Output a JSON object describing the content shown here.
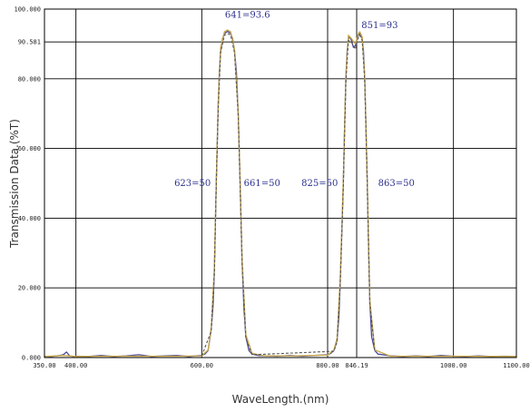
{
  "chart_data": {
    "type": "line",
    "xlabel": "WaveLength.(nm)",
    "ylabel": "Transmission Data.(%T)",
    "xlim": [
      350,
      1100
    ],
    "ylim": [
      0,
      100
    ],
    "x_ticks": [
      "350.00",
      "400.00",
      "600.00",
      "800.00",
      "846.19",
      "1000.00",
      "1100.00"
    ],
    "x_tick_values": [
      350,
      400,
      600,
      800,
      846.19,
      1000,
      1100
    ],
    "y_ticks": [
      "0.000",
      "20.000",
      "40.000",
      "60.000",
      "80.000",
      "90.581",
      "100.000"
    ],
    "y_tick_values": [
      0,
      20,
      40,
      60,
      80,
      90.581,
      100
    ],
    "x_grid": [
      400,
      600,
      800,
      846.19,
      1000
    ],
    "y_grid": [
      20,
      40,
      60,
      80,
      90.581
    ],
    "grid": true,
    "annotations": [
      {
        "text": "641=93.6",
        "x": 641,
        "y": 93.6
      },
      {
        "text": "851=93",
        "x": 851,
        "y": 93
      },
      {
        "text": "623=50",
        "x": 623,
        "y": 50
      },
      {
        "text": "661=50",
        "x": 661,
        "y": 50
      },
      {
        "text": "825=50",
        "x": 825,
        "y": 50
      },
      {
        "text": "863=50",
        "x": 863,
        "y": 50
      }
    ],
    "series": [
      {
        "color": "#4a4a9a",
        "x": [
          350,
          360,
          370,
          380,
          385,
          390,
          395,
          400,
          420,
          440,
          460,
          480,
          500,
          520,
          540,
          560,
          580,
          590,
          600,
          605,
          610,
          615,
          618,
          620,
          623,
          626,
          628,
          630,
          633,
          636,
          641,
          646,
          649,
          652,
          655,
          658,
          661,
          664,
          667,
          670,
          675,
          680,
          690,
          700,
          720,
          740,
          760,
          780,
          800,
          805,
          810,
          815,
          818,
          820,
          823,
          825,
          827,
          829,
          831,
          833,
          835,
          838,
          841,
          844,
          847,
          849,
          851,
          853,
          855,
          857,
          859,
          861,
          863,
          865,
          867,
          870,
          875,
          880,
          900,
          920,
          940,
          960,
          980,
          1000,
          1020,
          1040,
          1060,
          1080,
          1100
        ],
        "y": [
          0.4,
          0.3,
          0.5,
          0.8,
          1.6,
          0.5,
          0.3,
          0.4,
          0.3,
          0.6,
          0.3,
          0.5,
          0.8,
          0.3,
          0.5,
          0.6,
          0.3,
          0.5,
          0.6,
          1.0,
          2.0,
          8.0,
          15.0,
          25.0,
          50.0,
          72.0,
          82.0,
          88.0,
          91.5,
          93.0,
          93.6,
          93.0,
          91.5,
          88.0,
          82.0,
          70.0,
          50.0,
          28.0,
          14.0,
          6.0,
          2.0,
          1.0,
          0.6,
          0.5,
          0.4,
          0.6,
          0.4,
          0.6,
          0.8,
          1.2,
          2.0,
          5.0,
          12.0,
          22.0,
          38.0,
          50.0,
          66.0,
          80.0,
          88.0,
          91.5,
          92.0,
          91.0,
          89.0,
          89.5,
          91.5,
          92.5,
          93.0,
          92.5,
          91.5,
          88.0,
          80.0,
          66.0,
          50.0,
          32.0,
          16.0,
          6.0,
          2.0,
          1.0,
          0.5,
          0.3,
          0.5,
          0.3,
          0.6,
          0.4,
          0.3,
          0.5,
          0.3,
          0.4,
          0.3
        ]
      },
      {
        "color": "#c9a84a",
        "x": [
          350,
          380,
          400,
          440,
          480,
          520,
          560,
          600,
          610,
          615,
          620,
          623,
          626,
          630,
          636,
          641,
          646,
          652,
          658,
          661,
          664,
          670,
          680,
          700,
          750,
          800,
          810,
          815,
          820,
          825,
          829,
          833,
          838,
          844,
          849,
          851,
          855,
          859,
          863,
          867,
          875,
          900,
          1000,
          1100
        ],
        "y": [
          0.3,
          0.6,
          0.3,
          0.4,
          0.4,
          0.4,
          0.4,
          0.5,
          2.2,
          8.5,
          26.0,
          50.5,
          73.0,
          89.0,
          93.5,
          94.0,
          93.5,
          88.5,
          70.5,
          50.5,
          28.5,
          6.5,
          1.2,
          0.5,
          0.5,
          0.7,
          2.2,
          5.5,
          23.0,
          51.0,
          81.0,
          92.5,
          91.5,
          90.0,
          93.0,
          93.5,
          92.0,
          80.5,
          50.5,
          16.5,
          2.2,
          0.4,
          0.4,
          0.3
        ]
      },
      {
        "color": "#555555",
        "x": [
          600,
          615,
          620,
          623,
          626,
          630,
          636,
          641,
          646,
          652,
          658,
          661,
          664,
          670,
          680,
          810,
          815,
          820,
          825,
          829,
          833,
          838,
          844,
          849,
          851,
          855,
          859,
          863,
          867,
          875
        ],
        "y": [
          0.5,
          7.5,
          24.0,
          49.5,
          71.0,
          87.5,
          92.5,
          93.0,
          92.5,
          87.5,
          69.5,
          49.5,
          27.5,
          5.5,
          0.8,
          1.8,
          4.5,
          21.0,
          49.0,
          79.0,
          91.0,
          90.5,
          88.5,
          92.0,
          92.5,
          91.0,
          79.5,
          49.5,
          15.5,
          1.8
        ]
      }
    ]
  }
}
